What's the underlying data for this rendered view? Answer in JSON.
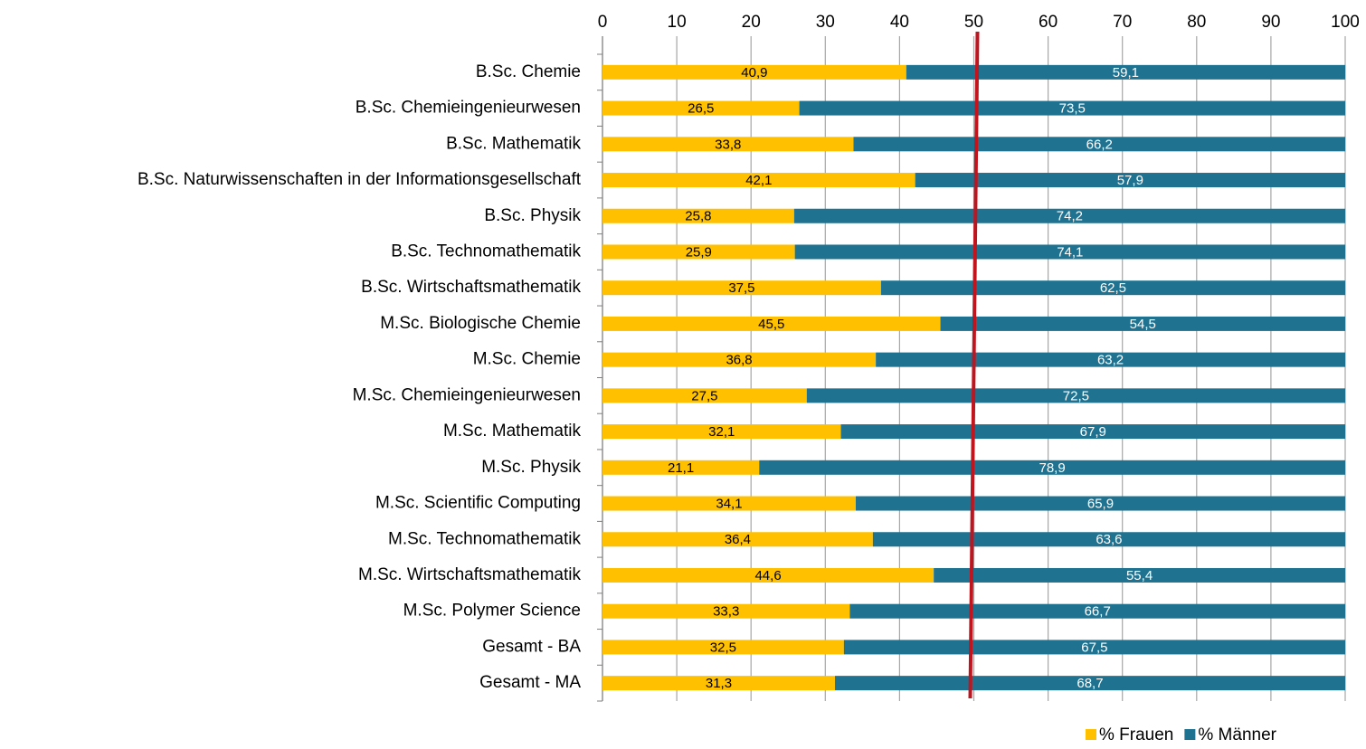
{
  "chart_data": {
    "type": "stacked-bar-horizontal",
    "categories": [
      "B.Sc. Chemie",
      "B.Sc. Chemieingenieurwesen",
      "B.Sc. Mathematik",
      "B.Sc. Naturwissenschaften in der Informationsgesellschaft",
      "B.Sc. Physik",
      "B.Sc. Technomathematik",
      "B.Sc. Wirtschaftsmathematik",
      "M.Sc. Biologische Chemie",
      "M.Sc. Chemie",
      "M.Sc. Chemieingenieurwesen",
      "M.Sc. Mathematik",
      "M.Sc. Physik",
      "M.Sc. Scientific Computing",
      "M.Sc. Technomathematik",
      "M.Sc. Wirtschaftsmathematik",
      "M.Sc. Polymer Science",
      "Gesamt - BA",
      "Gesamt - MA"
    ],
    "series": [
      {
        "name": "% Frauen",
        "color": "#ffc000",
        "label_color": "#000000",
        "values": [
          40.9,
          26.5,
          33.8,
          42.1,
          25.8,
          25.9,
          37.5,
          45.5,
          36.8,
          27.5,
          32.1,
          21.1,
          34.1,
          36.4,
          44.6,
          33.3,
          32.5,
          31.3
        ],
        "value_labels": [
          "40,9",
          "26,5",
          "33,8",
          "42,1",
          "25,8",
          "25,9",
          "37,5",
          "45,5",
          "36,8",
          "27,5",
          "32,1",
          "21,1",
          "34,1",
          "36,4",
          "44,6",
          "33,3",
          "32,5",
          "31,3"
        ]
      },
      {
        "name": "% Männer",
        "color": "#1f7391",
        "label_color": "#ffffff",
        "values": [
          59.1,
          73.5,
          66.2,
          57.9,
          74.2,
          74.1,
          62.5,
          54.5,
          63.2,
          72.5,
          67.9,
          78.9,
          65.9,
          63.6,
          55.4,
          66.7,
          67.5,
          68.7
        ],
        "value_labels": [
          "59,1",
          "73,5",
          "66,2",
          "57,9",
          "74,2",
          "74,1",
          "62,5",
          "54,5",
          "63,2",
          "72,5",
          "67,9",
          "78,9",
          "65,9",
          "63,6",
          "55,4",
          "66,7",
          "67,5",
          "68,7"
        ]
      }
    ],
    "xlim": [
      0,
      100
    ],
    "xticks": [
      0,
      10,
      20,
      30,
      40,
      50,
      60,
      70,
      80,
      90,
      100
    ],
    "grid": true,
    "reference_line": {
      "value": 50,
      "color": "#c0141e"
    },
    "legend": "bottom-right"
  }
}
